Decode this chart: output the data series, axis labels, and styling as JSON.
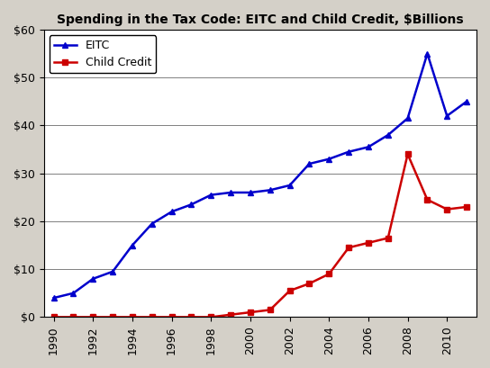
{
  "title": "Spending in the Tax Code: EITC and Child Credit, $Billions",
  "eitc_years": [
    1990,
    1991,
    1992,
    1993,
    1994,
    1995,
    1996,
    1997,
    1998,
    1999,
    2000,
    2001,
    2002,
    2003,
    2004,
    2005,
    2006,
    2007,
    2008,
    2009,
    2010,
    2011
  ],
  "eitc_values": [
    4.0,
    5.0,
    8.0,
    9.5,
    15.0,
    19.5,
    22.0,
    23.5,
    25.5,
    26.0,
    26.0,
    26.5,
    27.5,
    32.0,
    33.0,
    34.5,
    35.5,
    38.0,
    41.5,
    55.0,
    42.0,
    45.0
  ],
  "child_years": [
    1990,
    1991,
    1992,
    1993,
    1994,
    1995,
    1996,
    1997,
    1998,
    1999,
    2000,
    2001,
    2002,
    2003,
    2004,
    2005,
    2006,
    2007,
    2008,
    2009,
    2010,
    2011
  ],
  "child_values": [
    0.0,
    0.0,
    0.0,
    0.0,
    0.0,
    0.0,
    0.0,
    0.0,
    0.0,
    0.5,
    1.0,
    1.5,
    5.5,
    7.0,
    9.0,
    14.5,
    15.5,
    16.5,
    34.0,
    24.5,
    22.5,
    23.0
  ],
  "eitc_color": "#0000CC",
  "child_color": "#CC0000",
  "background_color": "#D4D0C8",
  "plot_bg_color": "#FFFFFF",
  "ylim": [
    0,
    60
  ],
  "yticks": [
    0,
    10,
    20,
    30,
    40,
    50,
    60
  ],
  "xlim_min": 1989.5,
  "xlim_max": 2011.5,
  "xticks": [
    1990,
    1992,
    1994,
    1996,
    1998,
    2000,
    2002,
    2004,
    2006,
    2008,
    2010
  ]
}
